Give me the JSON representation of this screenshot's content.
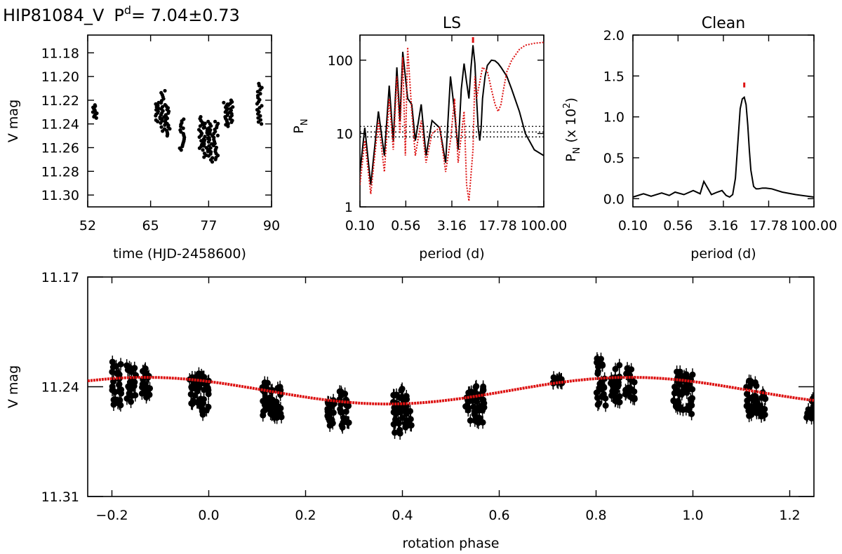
{
  "figure_title": {
    "name": "HIP81084_V",
    "period_prefix": "P",
    "period_sup": "d",
    "period_value": "= 7.04±0.73"
  },
  "colors": {
    "axes": "#000000",
    "series_primary": "#000000",
    "series_secondary": "#dd1111"
  },
  "chart_data": [
    {
      "id": "lightcurve",
      "type": "scatter",
      "title": "",
      "xlabel": "time (HJD-2458600)",
      "ylabel": "V mag",
      "xlim": [
        52,
        90
      ],
      "ylim": [
        11.31,
        11.165
      ],
      "y_inverted": true,
      "xticks": [
        "52",
        "65",
        "77",
        "90"
      ],
      "xtick_values": [
        52,
        65,
        77,
        90
      ],
      "yticks": [
        "11.18",
        "11.20",
        "11.22",
        "11.24",
        "11.26",
        "11.28",
        "11.30"
      ],
      "ytick_values": [
        11.18,
        11.2,
        11.22,
        11.24,
        11.26,
        11.28,
        11.3
      ],
      "groups": [
        {
          "x": 53.5,
          "y_min": 11.224,
          "y_max": 11.235
        },
        {
          "x": 66.5,
          "y_min": 11.222,
          "y_max": 11.238
        },
        {
          "x": 67.5,
          "y_min": 11.212,
          "y_max": 11.246
        },
        {
          "x": 68.5,
          "y_min": 11.225,
          "y_max": 11.25
        },
        {
          "x": 71.5,
          "y_min": 11.236,
          "y_max": 11.262
        },
        {
          "x": 75.5,
          "y_min": 11.234,
          "y_max": 11.262
        },
        {
          "x": 76.5,
          "y_min": 11.238,
          "y_max": 11.268
        },
        {
          "x": 77.5,
          "y_min": 11.24,
          "y_max": 11.272
        },
        {
          "x": 78.5,
          "y_min": 11.238,
          "y_max": 11.27
        },
        {
          "x": 80.5,
          "y_min": 11.222,
          "y_max": 11.242
        },
        {
          "x": 81.5,
          "y_min": 11.22,
          "y_max": 11.24
        },
        {
          "x": 87.5,
          "y_min": 11.206,
          "y_max": 11.24
        }
      ]
    },
    {
      "id": "ls-periodogram",
      "type": "line",
      "title": "LS",
      "xlabel": "period (d)",
      "ylabel_main": "P",
      "ylabel_sub": "N",
      "xscale": "log",
      "yscale": "log",
      "xlim": [
        0.1,
        100
      ],
      "ylim": [
        1,
        220
      ],
      "xticks": [
        "0.10",
        "0.56",
        "3.16",
        "17.78",
        "100.00"
      ],
      "xtick_values": [
        0.1,
        0.56,
        3.16,
        17.78,
        100
      ],
      "yticks": [
        "1",
        "10",
        "100"
      ],
      "ytick_values": [
        1,
        10,
        100
      ],
      "fap_levels": [
        9,
        10.5,
        12.5
      ],
      "peak_marker_x": 7.0,
      "series": [
        {
          "style": "solid",
          "x": [
            0.1,
            0.12,
            0.15,
            0.2,
            0.25,
            0.3,
            0.35,
            0.4,
            0.45,
            0.5,
            0.6,
            0.7,
            0.8,
            1.0,
            1.2,
            1.5,
            2.0,
            2.5,
            3.0,
            3.5,
            4.0,
            4.5,
            5.0,
            5.5,
            6.0,
            6.5,
            7.0,
            7.5,
            8.0,
            8.5,
            9.0,
            9.5,
            10.0,
            11.0,
            12.0,
            14.0,
            16.0,
            18.0,
            20.0,
            25.0,
            30.0,
            40.0,
            50.0,
            70.0,
            100.0
          ],
          "y": [
            3,
            12,
            2,
            20,
            5,
            45,
            8,
            80,
            15,
            130,
            30,
            25,
            8,
            25,
            5,
            15,
            12,
            4,
            60,
            20,
            6,
            40,
            90,
            50,
            30,
            80,
            160,
            90,
            30,
            12,
            8,
            12,
            30,
            60,
            85,
            100,
            98,
            90,
            80,
            60,
            40,
            20,
            10,
            6,
            5
          ]
        },
        {
          "style": "dotted",
          "x": [
            0.1,
            0.12,
            0.15,
            0.2,
            0.25,
            0.3,
            0.35,
            0.4,
            0.45,
            0.5,
            0.55,
            0.6,
            0.7,
            0.8,
            1.0,
            1.2,
            1.5,
            2.0,
            2.5,
            3.0,
            3.5,
            4.0,
            5.0,
            5.5,
            6.0,
            7.0,
            7.5,
            8.0,
            9.0,
            10.0,
            12.0,
            14.0,
            16.0,
            18.0,
            20.0,
            22.0,
            25.0,
            30.0,
            40.0,
            50.0,
            70.0,
            100.0
          ],
          "y": [
            2,
            8,
            1.5,
            15,
            3,
            30,
            6,
            60,
            10,
            110,
            5,
            150,
            20,
            5,
            15,
            4,
            10,
            12,
            3,
            8,
            30,
            4,
            20,
            2,
            1.2,
            6,
            60,
            30,
            50,
            80,
            70,
            40,
            25,
            20,
            25,
            40,
            70,
            100,
            140,
            160,
            170,
            175
          ]
        }
      ]
    },
    {
      "id": "clean-periodogram",
      "type": "line",
      "title": "Clean",
      "xlabel": "period (d)",
      "ylabel_main": "P",
      "ylabel_sub": "N",
      "ylabel_rest": "(x 10",
      "ylabel_exp": "2",
      "ylabel_close": ")",
      "xscale": "log",
      "xlim": [
        0.1,
        100
      ],
      "ylim": [
        -0.1,
        2.0
      ],
      "xticks": [
        "0.10",
        "0.56",
        "3.16",
        "17.78",
        "100.00"
      ],
      "xtick_values": [
        0.1,
        0.56,
        3.16,
        17.78,
        100
      ],
      "yticks": [
        "0.0",
        "0.5",
        "1.0",
        "1.5",
        "2.0"
      ],
      "ytick_values": [
        0,
        0.5,
        1.0,
        1.5,
        2.0
      ],
      "peak_marker_x": 7.0,
      "series": [
        {
          "style": "solid",
          "x": [
            0.1,
            0.15,
            0.2,
            0.3,
            0.4,
            0.5,
            0.7,
            1.0,
            1.3,
            1.5,
            2.0,
            2.5,
            3.0,
            3.5,
            4.0,
            4.5,
            5.0,
            5.5,
            6.0,
            6.5,
            7.0,
            7.5,
            8.0,
            8.5,
            9.0,
            10.0,
            11.0,
            12.0,
            14.0,
            16.0,
            20.0,
            30.0,
            50.0,
            100.0
          ],
          "y": [
            0.02,
            0.06,
            0.03,
            0.07,
            0.04,
            0.08,
            0.05,
            0.1,
            0.06,
            0.21,
            0.05,
            0.08,
            0.1,
            0.04,
            0.02,
            0.05,
            0.25,
            0.7,
            1.1,
            1.22,
            1.24,
            1.15,
            0.9,
            0.6,
            0.35,
            0.15,
            0.12,
            0.12,
            0.13,
            0.13,
            0.12,
            0.08,
            0.05,
            0.02
          ]
        }
      ]
    },
    {
      "id": "phased-curve",
      "type": "scatter",
      "title": "",
      "xlabel": "rotation phase",
      "ylabel": "V mag",
      "xlim": [
        -0.25,
        1.25
      ],
      "ylim": [
        11.31,
        11.17
      ],
      "y_inverted": true,
      "xticks": [
        "−0.2",
        "0.0",
        "0.2",
        "0.4",
        "0.6",
        "0.8",
        "1.0",
        "1.2"
      ],
      "xtick_values": [
        -0.2,
        0.0,
        0.2,
        0.4,
        0.6,
        0.8,
        1.0,
        1.2
      ],
      "yticks": [
        "11.17",
        "11.24",
        "11.31"
      ],
      "ytick_values": [
        11.17,
        11.24,
        11.31
      ],
      "fit": {
        "mean": 11.2425,
        "amplitude": 0.0085,
        "phase_max": 0.87
      },
      "groups": [
        {
          "phase": -0.19,
          "y_min": 11.222,
          "y_max": 11.252
        },
        {
          "phase": -0.16,
          "y_min": 11.226,
          "y_max": 11.25
        },
        {
          "phase": -0.13,
          "y_min": 11.228,
          "y_max": 11.248
        },
        {
          "phase": -0.03,
          "y_min": 11.23,
          "y_max": 11.255
        },
        {
          "phase": -0.01,
          "y_min": 11.232,
          "y_max": 11.258
        },
        {
          "phase": 0.12,
          "y_min": 11.236,
          "y_max": 11.259
        },
        {
          "phase": 0.14,
          "y_min": 11.238,
          "y_max": 11.26
        },
        {
          "phase": 0.25,
          "y_min": 11.246,
          "y_max": 11.265
        },
        {
          "phase": 0.28,
          "y_min": 11.243,
          "y_max": 11.266
        },
        {
          "phase": 0.39,
          "y_min": 11.24,
          "y_max": 11.27
        },
        {
          "phase": 0.41,
          "y_min": 11.245,
          "y_max": 11.266
        },
        {
          "phase": 0.54,
          "y_min": 11.242,
          "y_max": 11.262
        },
        {
          "phase": 0.56,
          "y_min": 11.238,
          "y_max": 11.265
        },
        {
          "phase": 0.72,
          "y_min": 11.234,
          "y_max": 11.238
        },
        {
          "phase": 0.81,
          "y_min": 11.222,
          "y_max": 11.252
        },
        {
          "phase": 0.84,
          "y_min": 11.226,
          "y_max": 11.25
        },
        {
          "phase": 0.87,
          "y_min": 11.228,
          "y_max": 11.248
        },
        {
          "phase": 0.97,
          "y_min": 11.23,
          "y_max": 11.255
        },
        {
          "phase": 0.99,
          "y_min": 11.232,
          "y_max": 11.258
        },
        {
          "phase": 1.12,
          "y_min": 11.236,
          "y_max": 11.259
        },
        {
          "phase": 1.14,
          "y_min": 11.238,
          "y_max": 11.26
        },
        {
          "phase": 1.245,
          "y_min": 11.246,
          "y_max": 11.262
        }
      ]
    }
  ]
}
